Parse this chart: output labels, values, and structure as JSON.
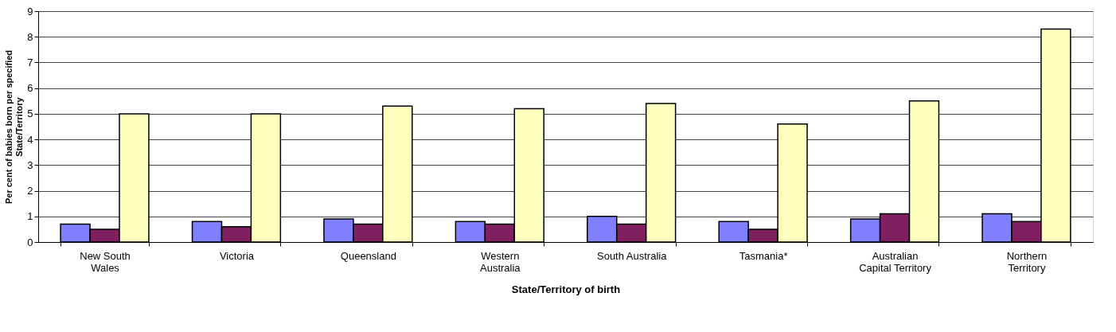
{
  "chart_data": {
    "type": "bar",
    "xlabel": "State/Territory of birth",
    "ylabel": "Per cent of babies born per specified\nState/Territory",
    "categories": [
      "New South\nWales",
      "Victoria",
      "Queensland",
      "Western\nAustralia",
      "South Australia",
      "Tasmania*",
      "Australian\nCapital Territory",
      "Northern\nTerritory"
    ],
    "series": [
      {
        "color": "#8080ff",
        "values": [
          0.7,
          0.8,
          0.9,
          0.8,
          1.0,
          0.8,
          0.9,
          1.1
        ]
      },
      {
        "color": "#802060",
        "values": [
          0.5,
          0.6,
          0.7,
          0.7,
          0.7,
          0.5,
          1.1,
          0.8
        ]
      },
      {
        "color": "#ffffc0",
        "values": [
          5.0,
          5.0,
          5.3,
          5.2,
          5.4,
          4.6,
          5.5,
          8.3
        ]
      }
    ],
    "ylim": [
      0,
      9
    ],
    "yticks": [
      0,
      1,
      2,
      3,
      4,
      5,
      6,
      7,
      8,
      9
    ],
    "grid": "y",
    "legend": false
  }
}
